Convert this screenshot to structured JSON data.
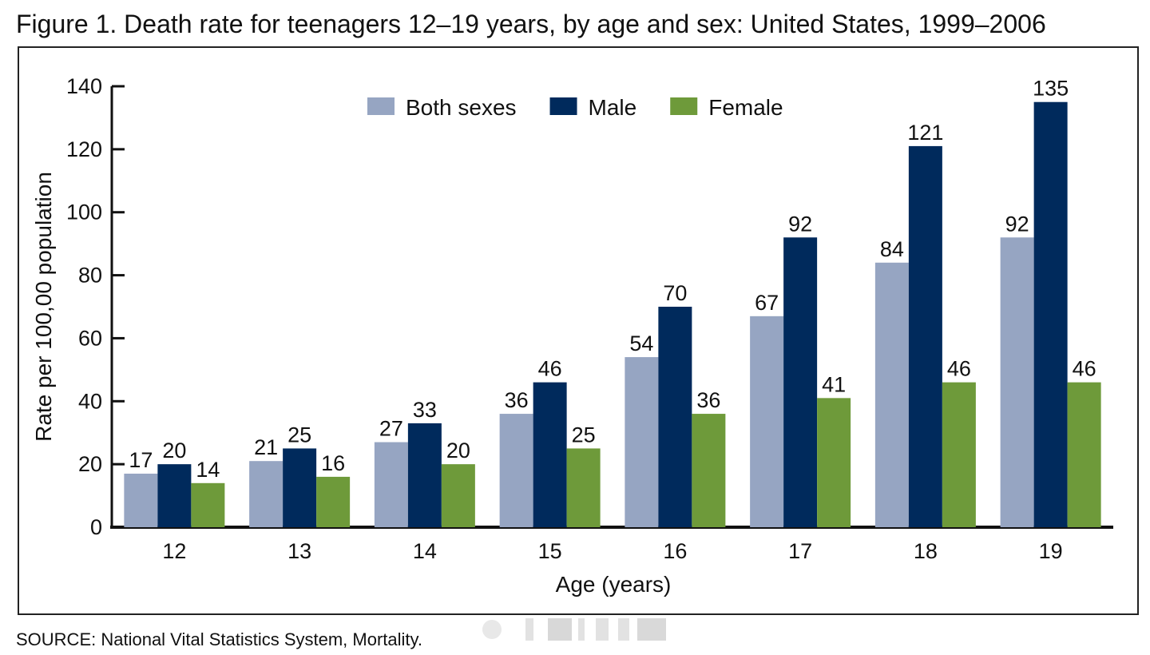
{
  "figure": {
    "title": "Figure 1. Death rate for teenagers 12–19 years, by age and sex: United States, 1999–2006",
    "source": "SOURCE: National Vital Statistics System, Mortality."
  },
  "chart_data": {
    "type": "bar",
    "title": "Figure 1. Death rate for teenagers 12–19 years, by age and sex: United States, 1999–2006",
    "xlabel": "Age (years)",
    "ylabel": "Rate per 100,00 population",
    "categories": [
      "12",
      "13",
      "14",
      "15",
      "16",
      "17",
      "18",
      "19"
    ],
    "ylim": [
      0,
      140
    ],
    "yticks": [
      0,
      20,
      40,
      60,
      80,
      100,
      120,
      140
    ],
    "grid": false,
    "legend_position": "top-center",
    "series": [
      {
        "name": "Both sexes",
        "color": "#96a5c2",
        "values": [
          17,
          21,
          27,
          36,
          54,
          67,
          84,
          92
        ]
      },
      {
        "name": "Male",
        "color": "#002a5c",
        "values": [
          20,
          25,
          33,
          46,
          70,
          92,
          121,
          135
        ]
      },
      {
        "name": "Female",
        "color": "#6e9a3a",
        "values": [
          14,
          16,
          20,
          25,
          36,
          41,
          46,
          46
        ]
      }
    ]
  }
}
